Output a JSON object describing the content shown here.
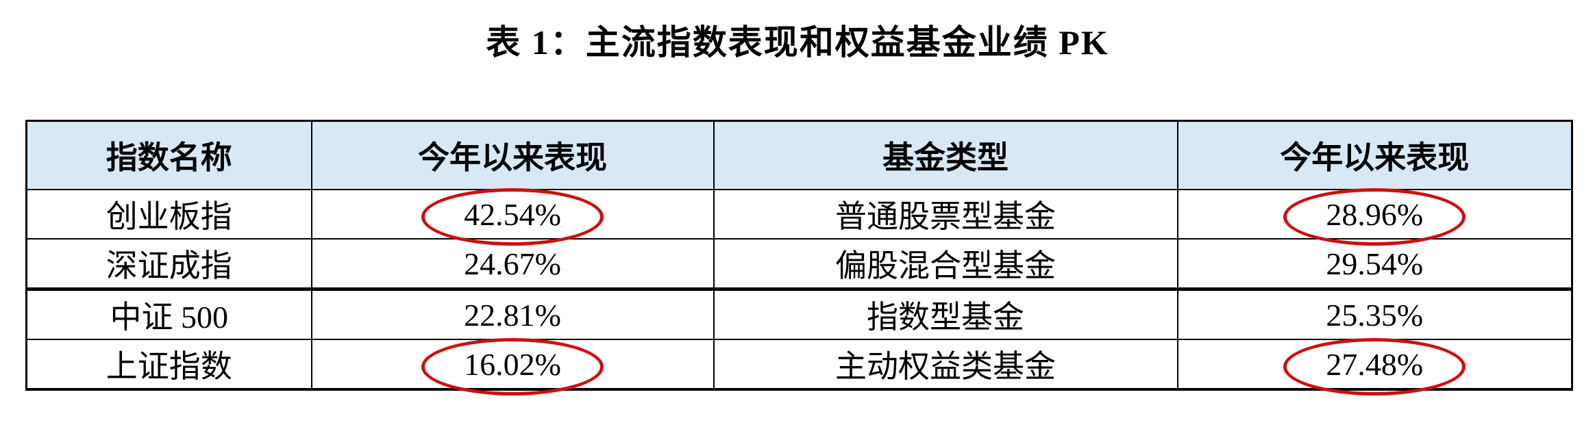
{
  "title": "表 1：主流指数表现和权益基金业绩 PK",
  "table": {
    "headers": [
      "指数名称",
      "今年以来表现",
      "基金类型",
      "今年以来表现"
    ],
    "rows": [
      {
        "index_name": "创业板指",
        "index_ytd": "42.54%",
        "fund_type": "普通股票型基金",
        "fund_ytd": "28.96%",
        "index_ytd_circled": true,
        "fund_ytd_circled": true
      },
      {
        "index_name": "深证成指",
        "index_ytd": "24.67%",
        "fund_type": "偏股混合型基金",
        "fund_ytd": "29.54%",
        "index_ytd_circled": false,
        "fund_ytd_circled": false
      },
      {
        "index_name": "中证 500",
        "index_ytd": "22.81%",
        "fund_type": "指数型基金",
        "fund_ytd": "25.35%",
        "index_ytd_circled": false,
        "fund_ytd_circled": false
      },
      {
        "index_name": "上证指数",
        "index_ytd": "16.02%",
        "fund_type": "主动权益类基金",
        "fund_ytd": "27.48%",
        "index_ytd_circled": true,
        "fund_ytd_circled": true
      }
    ]
  },
  "colors": {
    "header_bg": "#d9e8f5",
    "border": "#000000",
    "highlight_ellipse": "#cc1010",
    "text": "#000000"
  }
}
